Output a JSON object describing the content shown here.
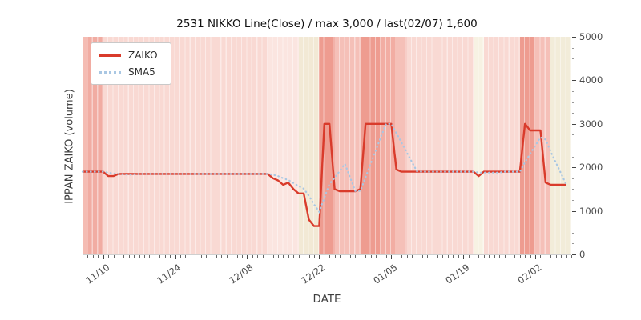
{
  "chart_data": {
    "type": "line",
    "title": "2531 NIKKO Line(Close) / max 3,000 / last(02/07) 1,600",
    "xlabel": "DATE",
    "ylabel": "IPPAN ZAIKO (volume)",
    "x_axis": {
      "unit": "days from left edge of plot (tick 11/10 = day 4)",
      "range_days": [
        0,
        95
      ],
      "minor_tick_every_days": 1,
      "ticks": [
        {
          "day": 4,
          "label": "11/10"
        },
        {
          "day": 18,
          "label": "11/24"
        },
        {
          "day": 32,
          "label": "12/08"
        },
        {
          "day": 46,
          "label": "12/22"
        },
        {
          "day": 60,
          "label": "01/05"
        },
        {
          "day": 74,
          "label": "01/19"
        },
        {
          "day": 88,
          "label": "02/02"
        }
      ]
    },
    "y_axis": {
      "side": "right",
      "range": [
        0,
        5000
      ],
      "ticks": [
        0,
        1000,
        2000,
        3000,
        4000,
        5000
      ],
      "minor_tick_every": 250
    },
    "legend": {
      "position": "upper-left"
    },
    "grid": "off",
    "series": [
      {
        "name": "ZAIKO",
        "style": "solid",
        "color": "#d93b2b",
        "start_day": 0,
        "values": [
          1900,
          1900,
          1900,
          1900,
          1900,
          1800,
          1800,
          1850,
          1850,
          1850,
          1850,
          1850,
          1850,
          1850,
          1850,
          1850,
          1850,
          1850,
          1850,
          1850,
          1850,
          1850,
          1850,
          1850,
          1850,
          1850,
          1850,
          1850,
          1850,
          1850,
          1850,
          1850,
          1850,
          1850,
          1850,
          1850,
          1850,
          1750,
          1700,
          1600,
          1650,
          1500,
          1400,
          1400,
          800,
          650,
          650,
          3000,
          3000,
          1500,
          1450,
          1450,
          1450,
          1450,
          1500,
          3000,
          3000,
          3000,
          3000,
          3000,
          3000,
          1950,
          1900,
          1900,
          1900,
          1900,
          1900,
          1900,
          1900,
          1900,
          1900,
          1900,
          1900,
          1900,
          1900,
          1900,
          1900,
          1800,
          1900,
          1900,
          1900,
          1900,
          1900,
          1900,
          1900,
          1900,
          3000,
          2850,
          2850,
          2850,
          1650,
          1600,
          1600,
          1600,
          1600
        ]
      },
      {
        "name": "SMA5",
        "style": "dotted",
        "color": "#a9c7e3",
        "derived_from": "ZAIKO",
        "window": 5
      }
    ],
    "background_bands": [
      [
        0,
        1,
        "#f5bcb3"
      ],
      [
        1,
        4,
        "#f1aca2"
      ],
      [
        4,
        36,
        "#f9d9d3"
      ],
      [
        36,
        42,
        "#fbe5e0"
      ],
      [
        42,
        46,
        "#f2e9d5"
      ],
      [
        46,
        49,
        "#ee9c90"
      ],
      [
        49,
        54,
        "#f5c0b8"
      ],
      [
        54,
        58,
        "#ee9c90"
      ],
      [
        58,
        61,
        "#f2ada3"
      ],
      [
        61,
        63,
        "#f5c0b8"
      ],
      [
        63,
        76,
        "#f9d9d3"
      ],
      [
        76,
        78,
        "#f7f2e3"
      ],
      [
        78,
        85,
        "#f9d9d3"
      ],
      [
        85,
        88,
        "#ee9c90"
      ],
      [
        88,
        91,
        "#f5c0b8"
      ],
      [
        91,
        95,
        "#f2ecd9"
      ]
    ]
  }
}
